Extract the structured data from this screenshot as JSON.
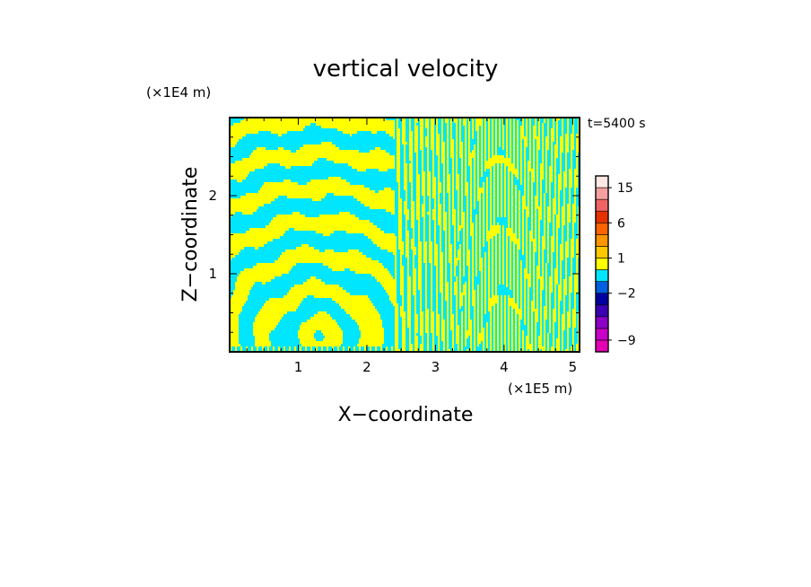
{
  "chart_data": {
    "type": "heatmap",
    "title": "vertical velocity",
    "xlabel": "X−coordinate",
    "ylabel": "Z−coordinate",
    "x_unit": "(×1E5 m)",
    "y_unit": "(×1E4 m)",
    "time_label": "t=5400 s",
    "xlim": [
      0,
      5.1
    ],
    "ylim": [
      0,
      3.0
    ],
    "x_ticks": [
      {
        "value": 1,
        "label": "1"
      },
      {
        "value": 2,
        "label": "2"
      },
      {
        "value": 3,
        "label": "3"
      },
      {
        "value": 4,
        "label": "4"
      },
      {
        "value": 5,
        "label": "5"
      }
    ],
    "y_ticks": [
      {
        "value": 1,
        "label": "1"
      },
      {
        "value": 2,
        "label": "2"
      }
    ],
    "colorbar": {
      "levels": [
        {
          "lo": -12,
          "hi": -9,
          "color": "#e600b4"
        },
        {
          "lo": -9,
          "hi": -6,
          "color": "#c800c8"
        },
        {
          "lo": -6,
          "hi": -4,
          "color": "#8c00c8"
        },
        {
          "lo": -4,
          "hi": -3,
          "color": "#3c00b4"
        },
        {
          "lo": -3,
          "hi": -2,
          "color": "#0000a0"
        },
        {
          "lo": -2,
          "hi": -1,
          "color": "#0060e0"
        },
        {
          "lo": -1,
          "hi": 0,
          "color": "#00e6ff"
        },
        {
          "lo": 0,
          "hi": 1,
          "color": "#ffff00"
        },
        {
          "lo": 1,
          "hi": 2,
          "color": "#ffc800"
        },
        {
          "lo": 2,
          "hi": 4,
          "color": "#ff9600"
        },
        {
          "lo": 4,
          "hi": 6,
          "color": "#ff6400"
        },
        {
          "lo": 6,
          "hi": 9,
          "color": "#e63200"
        },
        {
          "lo": 9,
          "hi": 12,
          "color": "#f06464"
        },
        {
          "lo": 12,
          "hi": 15,
          "color": "#f5a0a0"
        },
        {
          "lo": 15,
          "hi": 20,
          "color": "#fde8e4"
        }
      ],
      "tick_labels": [
        {
          "value": 15,
          "label": "15"
        },
        {
          "value": 6,
          "label": "6"
        },
        {
          "value": 1,
          "label": "1"
        },
        {
          "value": -2,
          "label": "−2"
        },
        {
          "value": -9,
          "label": "−9"
        }
      ]
    },
    "field_colors": {
      "positive": "#ffff00",
      "negative": "#00e6ff"
    }
  }
}
